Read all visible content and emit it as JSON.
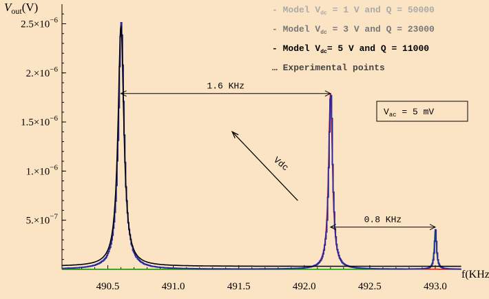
{
  "chart_data": {
    "type": "line",
    "x_axis": {
      "label": "f(KHz)",
      "range": [
        490.15,
        493.2
      ],
      "ticks": [
        490.5,
        491.0,
        491.5,
        492.0,
        492.5,
        493.0
      ],
      "tick_labels": [
        "490.5",
        "491.0",
        "491.5",
        "492.0",
        "492.5",
        "493.0"
      ]
    },
    "y_axis": {
      "label_main": "V",
      "label_sub": "out",
      "label_unit": "(V)",
      "range": [
        -5e-08,
        2.7e-06
      ],
      "ticks": [
        5e-07,
        1e-06,
        1.5e-06,
        2e-06,
        2.5e-06
      ],
      "tick_mantissa": [
        "5.",
        "1.",
        "1.5",
        "2.",
        "2.5"
      ],
      "tick_base": "10",
      "tick_exponent": "−6",
      "tick_exponent_list": [
        "−7",
        "−6",
        "−6",
        "−6",
        "−6"
      ]
    },
    "legend": {
      "placement": "top-right",
      "entries": [
        {
          "prefix": "- Model V",
          "sub": "dc",
          "suffix": " = 1 V and Q = 50000",
          "color": "#aaaaaa"
        },
        {
          "prefix": "- Model V",
          "sub": "dc",
          "suffix": " = 3 V and Q = 23000",
          "color": "#777777"
        },
        {
          "prefix": "- Model V",
          "sub": "dc",
          "suffix": "= 5 V and Q = 11000",
          "color": "#000000"
        },
        {
          "prefix": "… Experimental points",
          "sub": "",
          "suffix": "",
          "color": "#444444"
        }
      ]
    },
    "series": [
      {
        "role": "model_5V",
        "color": "#000000",
        "peak_x": 490.6,
        "peak_y": 2.45e-06,
        "half_width": 0.027,
        "baseline": 3e-08
      },
      {
        "role": "model_3V",
        "color": "#e01010",
        "peak_x": 492.2,
        "peak_y": 1.8e-06,
        "half_width": 0.018,
        "baseline": 0
      },
      {
        "role": "model_1V",
        "color": "#10b010",
        "peak_x": 493.0,
        "peak_y": 4.1e-07,
        "half_width": 0.01,
        "baseline": 0
      },
      {
        "role": "experimental",
        "color": "#2a2aa0",
        "peaks": [
          {
            "x": 490.6,
            "y": 2.42e-06,
            "w": 0.027
          },
          {
            "x": 492.2,
            "y": 1.78e-06,
            "w": 0.018
          },
          {
            "x": 493.0,
            "y": 4e-07,
            "w": 0.01
          }
        ]
      }
    ],
    "annotations": [
      {
        "text": "1.6 KHz",
        "x1": 490.6,
        "x2": 492.2,
        "y": 1.79e-06
      },
      {
        "text": "0.8 KHz",
        "x1": 492.2,
        "x2": 493.0,
        "y": 4.3e-07
      }
    ],
    "arrow": {
      "text": "Vdc",
      "from": [
        491.95,
        7e-07
      ],
      "to": [
        491.45,
        1.4e-06
      ]
    },
    "box": {
      "prefix": "V",
      "sub": "ac",
      "suffix": " = 5 mV"
    }
  }
}
